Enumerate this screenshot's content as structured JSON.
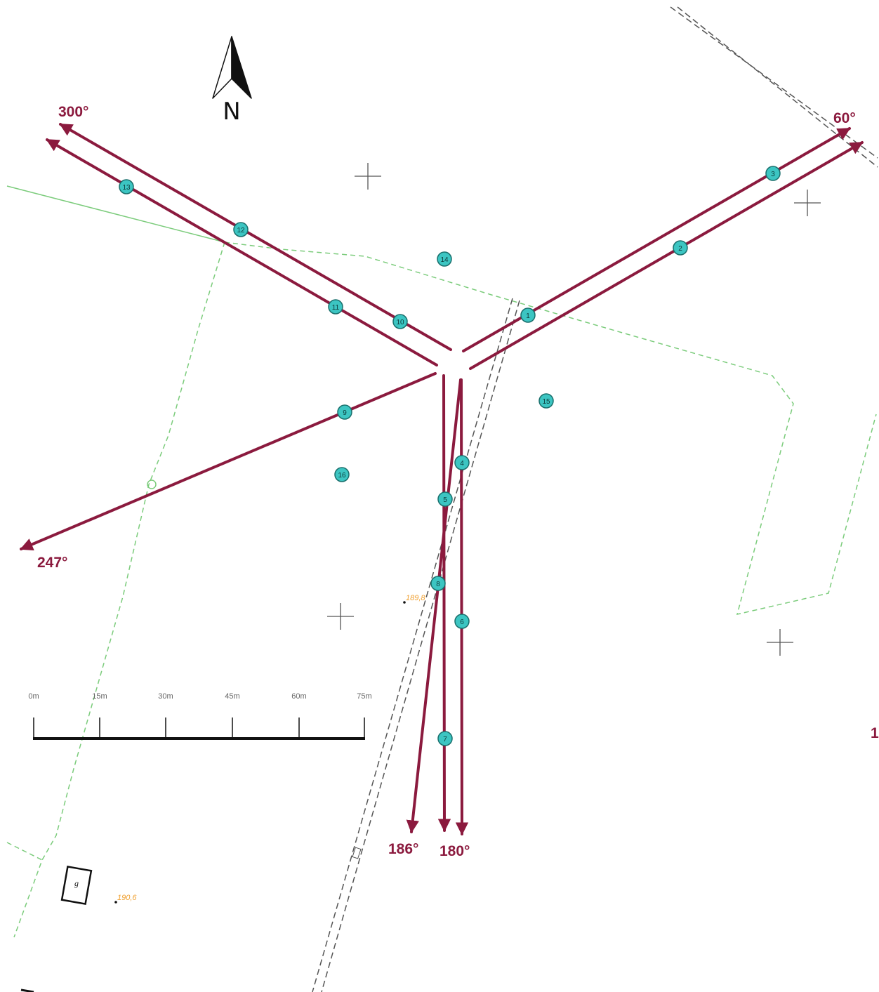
{
  "colors": {
    "profile": "#8b1a3e",
    "point_fill": "#3cc5c2",
    "point_stroke": "#1a6f6c",
    "parcel": "#7ccc7c",
    "road": "#555555",
    "elevation": "#f0a030"
  },
  "north_arrow": {
    "label": "N"
  },
  "bearings": {
    "b300": "300°",
    "b60": "60°",
    "b247": "247°",
    "b186": "186°",
    "b180": "180°",
    "edge": "1"
  },
  "points": [
    "1",
    "2",
    "3",
    "4",
    "5",
    "6",
    "7",
    "8",
    "9",
    "10",
    "11",
    "12",
    "13",
    "14",
    "15",
    "16"
  ],
  "scale_bar": {
    "ticks": [
      "0m",
      "15m",
      "30m",
      "45m",
      "60m",
      "75m"
    ]
  },
  "elevations": {
    "e1": "189,8",
    "e2": "190,6"
  },
  "building": {
    "label": "g"
  }
}
